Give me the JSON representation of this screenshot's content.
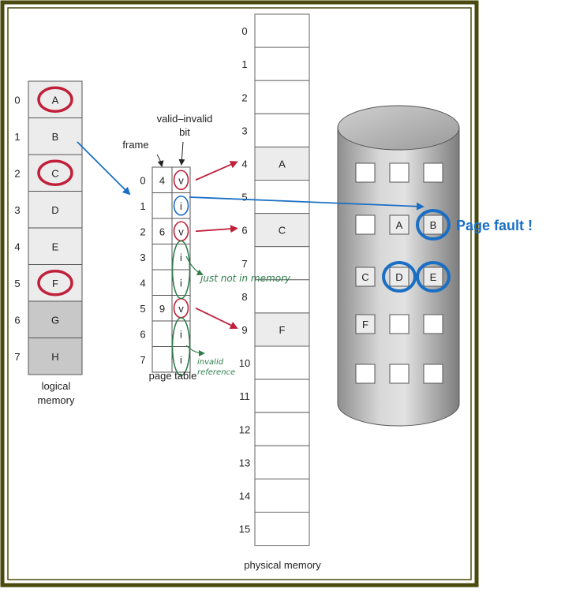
{
  "logical_memory": {
    "label_line1": "logical",
    "label_line2": "memory",
    "entries": [
      {
        "index": "0",
        "value": "A"
      },
      {
        "index": "1",
        "value": "B"
      },
      {
        "index": "2",
        "value": "C"
      },
      {
        "index": "3",
        "value": "D"
      },
      {
        "index": "4",
        "value": "E"
      },
      {
        "index": "5",
        "value": "F"
      },
      {
        "index": "6",
        "value": "G"
      },
      {
        "index": "7",
        "value": "H"
      }
    ]
  },
  "page_table": {
    "frame_label": "frame",
    "valid_invalid_label_line1": "valid–invalid",
    "valid_invalid_label_line2": "bit",
    "caption": "page table",
    "rows": [
      {
        "index": "0",
        "frame": "4",
        "bit": "v"
      },
      {
        "index": "1",
        "frame": "",
        "bit": "i"
      },
      {
        "index": "2",
        "frame": "6",
        "bit": "v"
      },
      {
        "index": "3",
        "frame": "",
        "bit": "i"
      },
      {
        "index": "4",
        "frame": "",
        "bit": "i"
      },
      {
        "index": "5",
        "frame": "9",
        "bit": "v"
      },
      {
        "index": "6",
        "frame": "",
        "bit": "i"
      },
      {
        "index": "7",
        "frame": "",
        "bit": "i"
      }
    ]
  },
  "physical_memory": {
    "caption": "physical memory",
    "frames": [
      {
        "index": "0",
        "value": ""
      },
      {
        "index": "1",
        "value": ""
      },
      {
        "index": "2",
        "value": ""
      },
      {
        "index": "3",
        "value": ""
      },
      {
        "index": "4",
        "value": "A"
      },
      {
        "index": "5",
        "value": ""
      },
      {
        "index": "6",
        "value": "C"
      },
      {
        "index": "7",
        "value": ""
      },
      {
        "index": "8",
        "value": ""
      },
      {
        "index": "9",
        "value": "F"
      },
      {
        "index": "10",
        "value": ""
      },
      {
        "index": "11",
        "value": ""
      },
      {
        "index": "12",
        "value": ""
      },
      {
        "index": "13",
        "value": ""
      },
      {
        "index": "14",
        "value": ""
      },
      {
        "index": "15",
        "value": ""
      }
    ]
  },
  "disk": {
    "rows": [
      [
        "",
        "",
        ""
      ],
      [
        "",
        "A",
        "B"
      ],
      [
        "C",
        "D",
        "E"
      ],
      [
        "F",
        "",
        ""
      ],
      [
        "",
        "",
        ""
      ]
    ]
  },
  "annotations": {
    "page_fault": "Page fault !",
    "not_in_memory": "just not in memory",
    "invalid_reference_line1": "invalid",
    "invalid_reference_line2": "reference"
  },
  "colors": {
    "frame_border": "#4a4a0e",
    "red_marker": "#c0203a",
    "blue_marker": "#1a6fc4",
    "green_marker": "#2e7d4a",
    "page_fault_text": "#1a6fc4",
    "light_cell": "#ececec",
    "dark_cell": "#c8c8c8"
  }
}
